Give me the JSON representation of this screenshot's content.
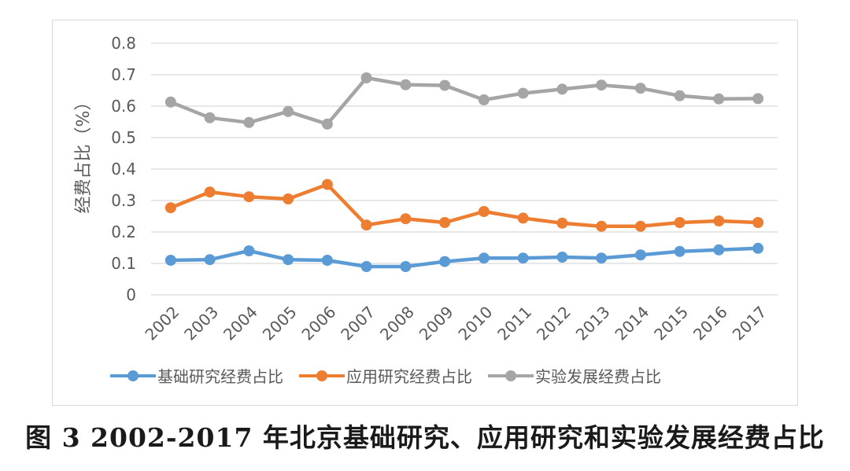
{
  "chart_data": {
    "type": "line",
    "categories": [
      "2002",
      "2003",
      "2004",
      "2005",
      "2006",
      "2007",
      "2008",
      "2009",
      "2010",
      "2011",
      "2012",
      "2013",
      "2014",
      "2015",
      "2016",
      "2017"
    ],
    "series": [
      {
        "name": "基础研究经费占比",
        "color": "#5b9bd5",
        "values": [
          0.11,
          0.112,
          0.14,
          0.112,
          0.11,
          0.09,
          0.09,
          0.106,
          0.117,
          0.117,
          0.12,
          0.117,
          0.127,
          0.138,
          0.143,
          0.148
        ]
      },
      {
        "name": "应用研究经费占比",
        "color": "#ed7d31",
        "values": [
          0.277,
          0.327,
          0.312,
          0.305,
          0.351,
          0.222,
          0.242,
          0.23,
          0.265,
          0.244,
          0.228,
          0.218,
          0.218,
          0.23,
          0.235,
          0.23
        ]
      },
      {
        "name": "实验发展经费占比",
        "color": "#a5a5a5",
        "values": [
          0.613,
          0.563,
          0.548,
          0.583,
          0.543,
          0.69,
          0.668,
          0.666,
          0.62,
          0.641,
          0.654,
          0.667,
          0.657,
          0.633,
          0.623,
          0.624
        ]
      }
    ],
    "ylabel": "经费占比（%）",
    "xlabel": "",
    "ylim": [
      0,
      0.8
    ],
    "yticks": [
      "0",
      "0.1",
      "0.2",
      "0.3",
      "0.4",
      "0.5",
      "0.6",
      "0.7",
      "0.8"
    ],
    "grid": true,
    "legend_position": "bottom"
  },
  "caption": "图 3 2002-2017 年北京基础研究、应用研究和实验发展经费占比"
}
